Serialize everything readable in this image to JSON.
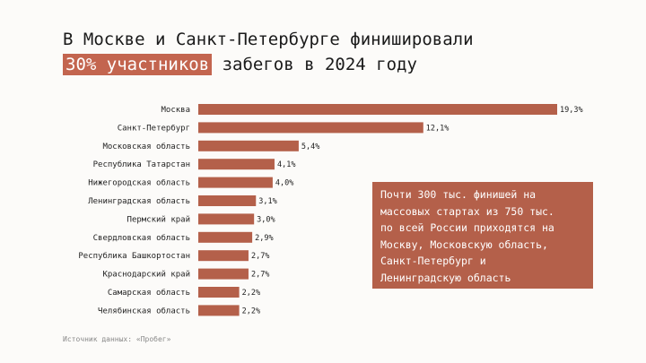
{
  "title": {
    "line1": "В Москве и Санкт-Петербурге финишировали",
    "line2_highlight": "30% участников",
    "line2_rest": " забегов в 2024 году"
  },
  "callout": {
    "lines": [
      "Почти 300 тыс. финишей на",
      "массовых стартах из 750 тыс.",
      "по всей России приходятся на",
      "Москву, Московскую область,",
      "Санкт-Петербург и",
      "Ленинградскую область"
    ]
  },
  "source": "Источник данных: «Пробег»",
  "colors": {
    "bar": "#b4604a",
    "highlight": "#c3654f",
    "callout": "#b4604a"
  },
  "chart_data": {
    "type": "bar",
    "orientation": "horizontal",
    "categories": [
      "Москва",
      "Санкт-Петербург",
      "Московская область",
      "Республика Татарстан",
      "Нижегородская область",
      "Ленинградская область",
      "Пермский край",
      "Свердловская область",
      "Республика Башкортостан",
      "Краснодарский край",
      "Самарская область",
      "Челябинская область"
    ],
    "values": [
      19.3,
      12.1,
      5.4,
      4.1,
      4.0,
      3.1,
      3.0,
      2.9,
      2.7,
      2.7,
      2.2,
      2.2
    ],
    "value_labels": [
      "19,3%",
      "12,1%",
      "5,4%",
      "4,1%",
      "4,0%",
      "3,1%",
      "3,0%",
      "2,9%",
      "2,7%",
      "2,7%",
      "2,2%",
      "2,2%"
    ],
    "xlim": [
      0,
      19.3
    ],
    "grid": false,
    "legend": "none"
  }
}
